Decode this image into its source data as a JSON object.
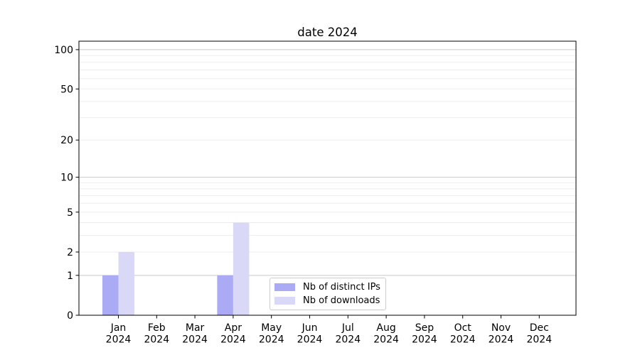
{
  "chart_data": {
    "type": "bar",
    "title": "date 2024",
    "x_axis": {
      "months": [
        "Jan",
        "Feb",
        "Mar",
        "Apr",
        "May",
        "Jun",
        "Jul",
        "Aug",
        "Sep",
        "Oct",
        "Nov",
        "Dec"
      ],
      "year": "2024"
    },
    "series": [
      {
        "name": "Nb of distinct IPs",
        "color": "#aaaaf5",
        "values": [
          1,
          0,
          0,
          1,
          0,
          0,
          0,
          0,
          0,
          0,
          0,
          0
        ]
      },
      {
        "name": "Nb of downloads",
        "color": "#d9d9f7",
        "values": [
          2,
          0,
          0,
          4,
          0,
          0,
          0,
          0,
          0,
          0,
          0,
          0
        ]
      }
    ],
    "y_axis": {
      "scale": "log1p",
      "tick_labels": [
        0,
        1,
        2,
        5,
        10,
        20,
        50,
        100
      ],
      "major_grid": [
        1,
        10,
        100
      ],
      "minor_grid": [
        2,
        3,
        4,
        5,
        6,
        7,
        8,
        9,
        20,
        30,
        40,
        50,
        60,
        70,
        80,
        90
      ],
      "ylim": [
        0,
        116
      ]
    },
    "legend": {
      "position": "lower center",
      "items": [
        "Nb of distinct IPs",
        "Nb of downloads"
      ]
    },
    "grid": true
  },
  "colors": {
    "axis": "#000000",
    "tick_text": "#000000",
    "major_grid": "#c9c9c9",
    "minor_grid": "#ededed",
    "legend_border": "#cccccc",
    "background": "#ffffff"
  }
}
